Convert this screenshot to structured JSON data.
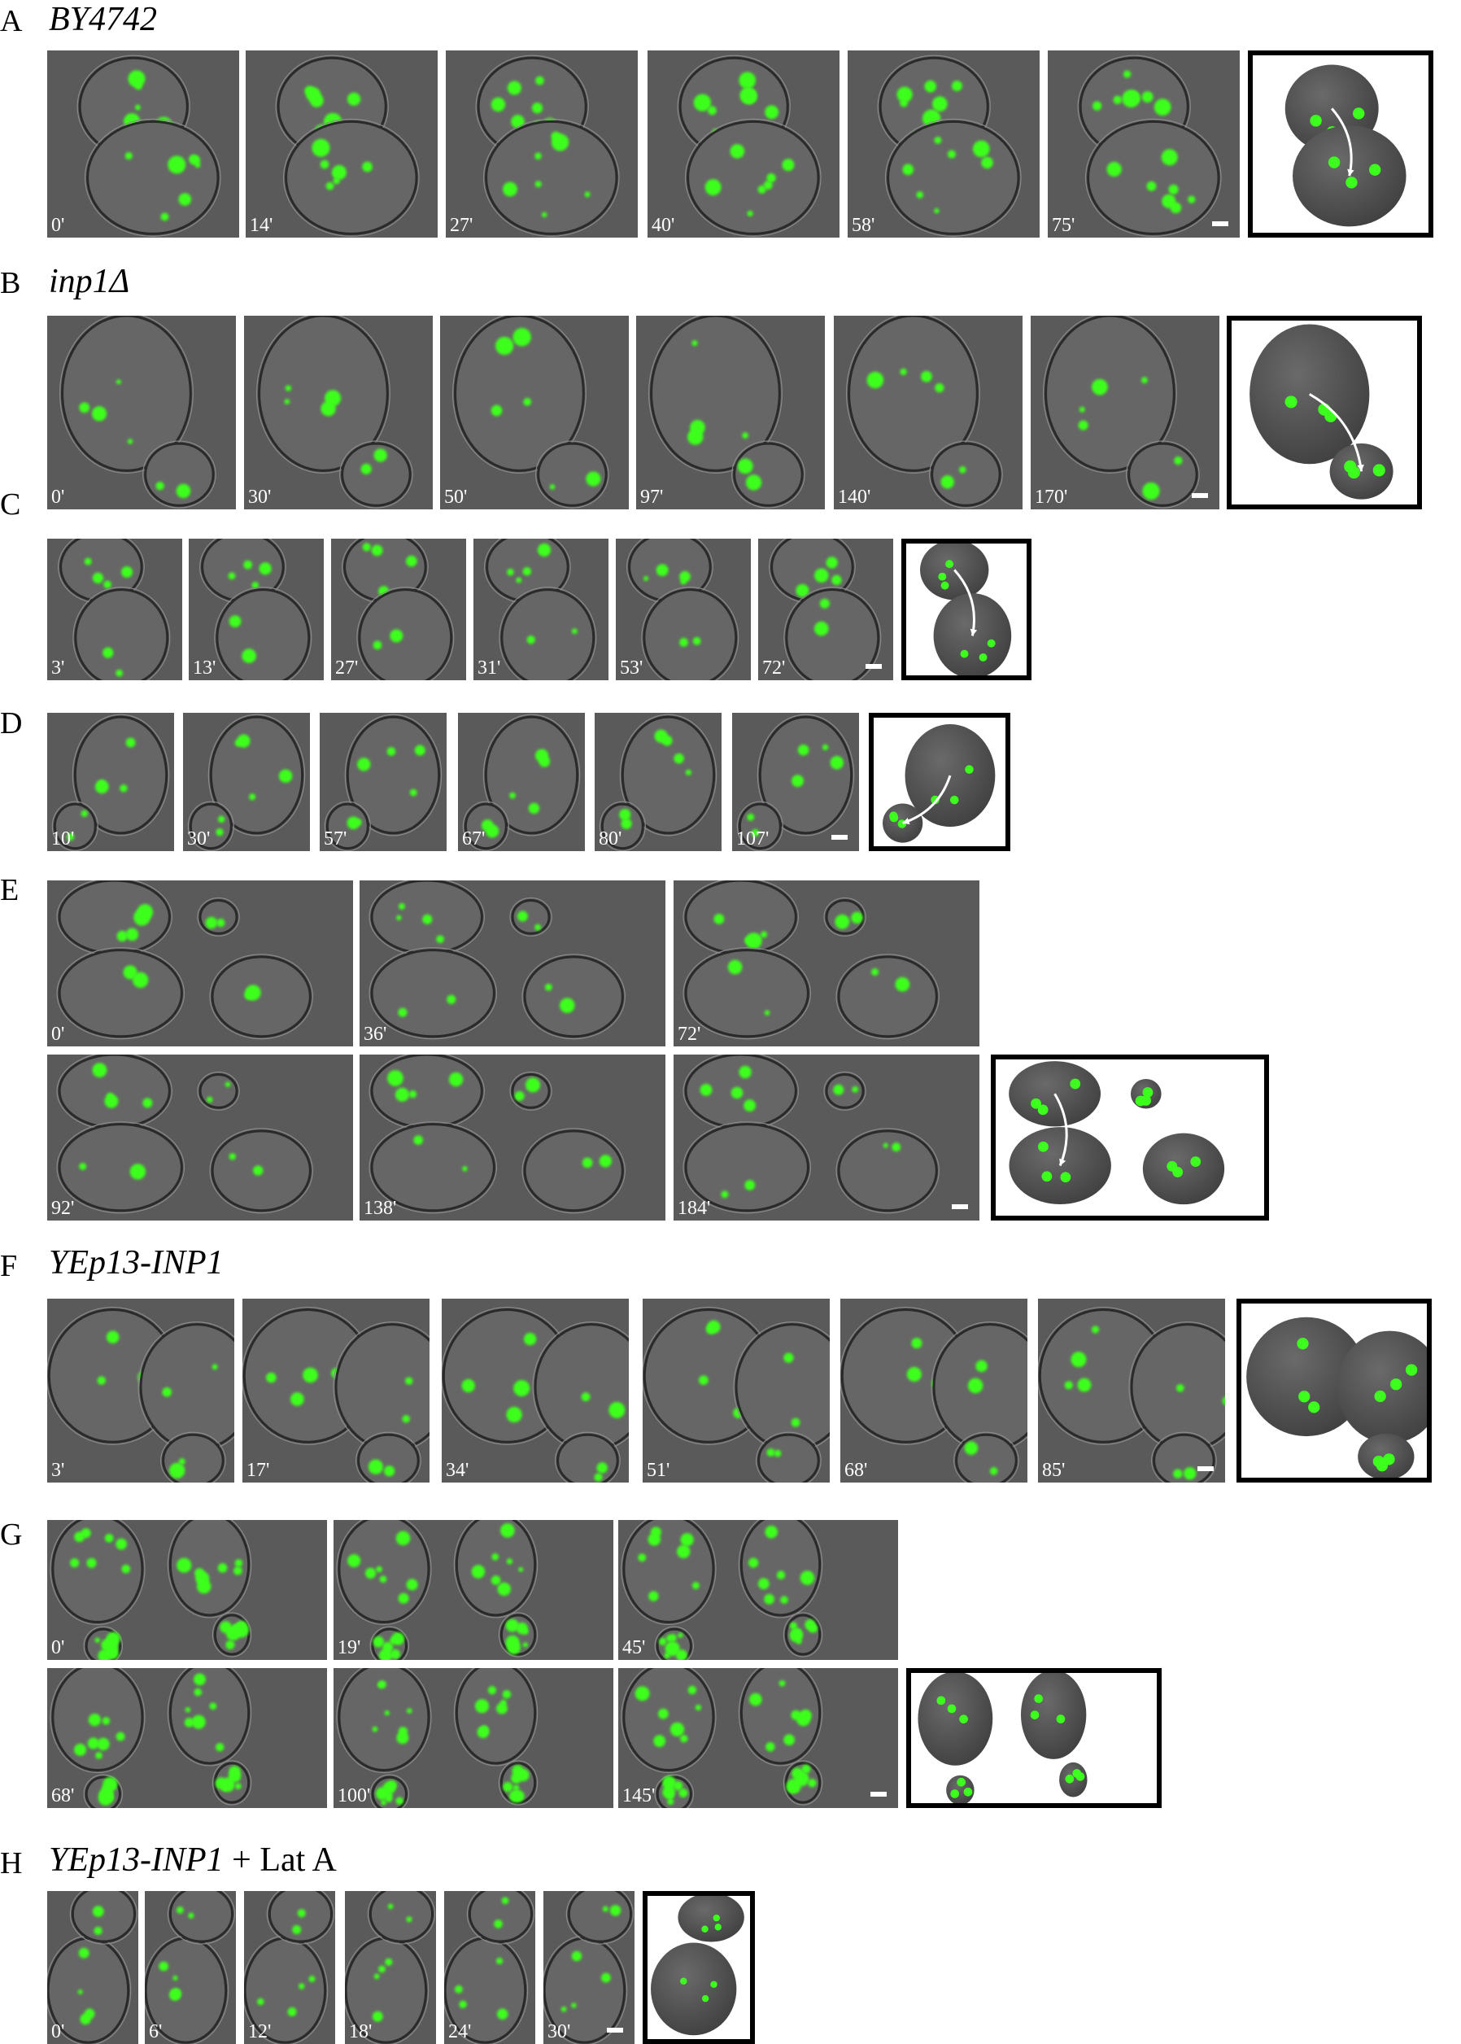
{
  "panels": {
    "A": {
      "letter": "A",
      "title": "BY4742",
      "times": [
        "0'",
        "14'",
        "27'",
        "40'",
        "58'",
        "75'"
      ]
    },
    "B": {
      "letter": "B",
      "title": "inp1Δ",
      "times": [
        "0'",
        "30'",
        "50'",
        "97'",
        "140'",
        "170'"
      ]
    },
    "C": {
      "letter": "C",
      "times": [
        "3'",
        "13'",
        "27'",
        "31'",
        "53'",
        "72'"
      ]
    },
    "D": {
      "letter": "D",
      "times": [
        "10'",
        "30'",
        "57'",
        "67'",
        "80'",
        "107'"
      ]
    },
    "E": {
      "letter": "E",
      "times": [
        "0'",
        "36'",
        "72'",
        "92'",
        "138'",
        "184'"
      ]
    },
    "F": {
      "letter": "F",
      "title": "YEp13-INP1",
      "times": [
        "3'",
        "17'",
        "34'",
        "51'",
        "68'",
        "85'"
      ]
    },
    "G": {
      "letter": "G",
      "times": [
        "0'",
        "19'",
        "45'",
        "68'",
        "100'",
        "145'"
      ]
    },
    "H": {
      "letter": "H",
      "title": "YEp13-INP1",
      "title_suffix": " + Lat A",
      "times": [
        "0'",
        "6'",
        "12'",
        "18'",
        "24'",
        "30'"
      ]
    }
  },
  "colors": {
    "peroxisome": "#3dff1e",
    "background": "#5a5a5a",
    "cell_edge": "#2a2a2a",
    "schematic_cell": "#404040"
  }
}
